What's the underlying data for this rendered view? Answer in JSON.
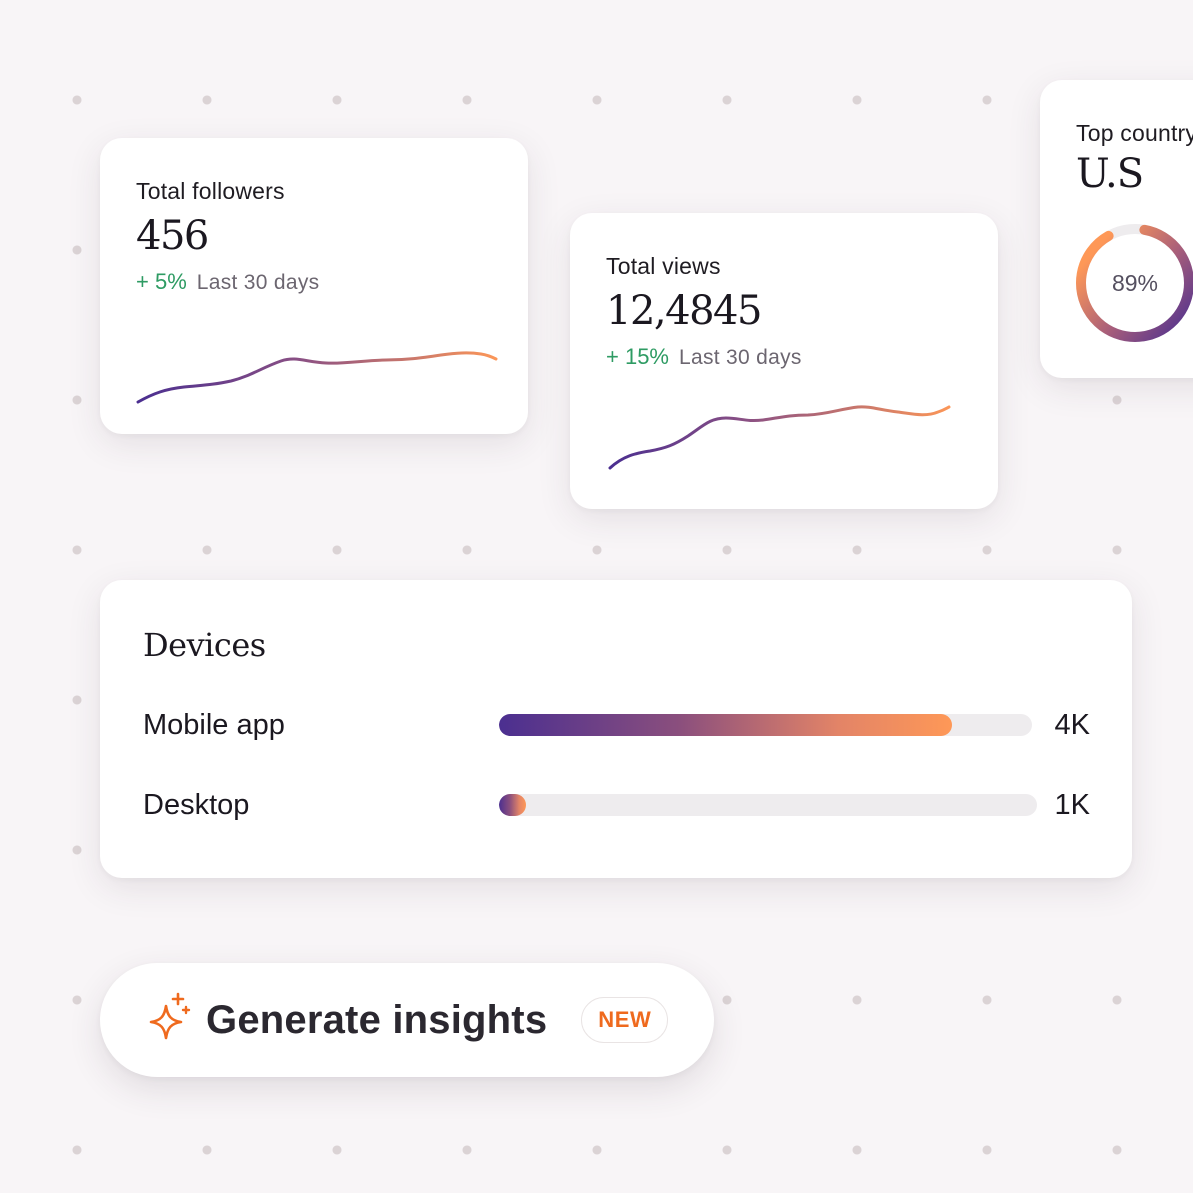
{
  "colors": {
    "gradient_start": "#4b2f90",
    "gradient_end": "#fe9857",
    "positive": "#2e9b63",
    "accent": "#ef6a1e"
  },
  "followers": {
    "label": "Total followers",
    "value": "456",
    "delta": "+ 5%",
    "period": "Last 30 days"
  },
  "views": {
    "label": "Total views",
    "value": "12,4845",
    "delta": "+ 15%",
    "period": "Last 30 days"
  },
  "country": {
    "label": "Top country",
    "value": "U.S",
    "percent_label": "89%",
    "percent": 89
  },
  "devices": {
    "title": "Devices",
    "items": [
      {
        "name": "Mobile app",
        "value": "4K",
        "fill": 0.85
      },
      {
        "name": "Desktop",
        "value": "1K",
        "fill": 0.05
      }
    ]
  },
  "insights": {
    "label": "Generate insights",
    "badge": "NEW",
    "icon": "sparkle-icon"
  }
}
